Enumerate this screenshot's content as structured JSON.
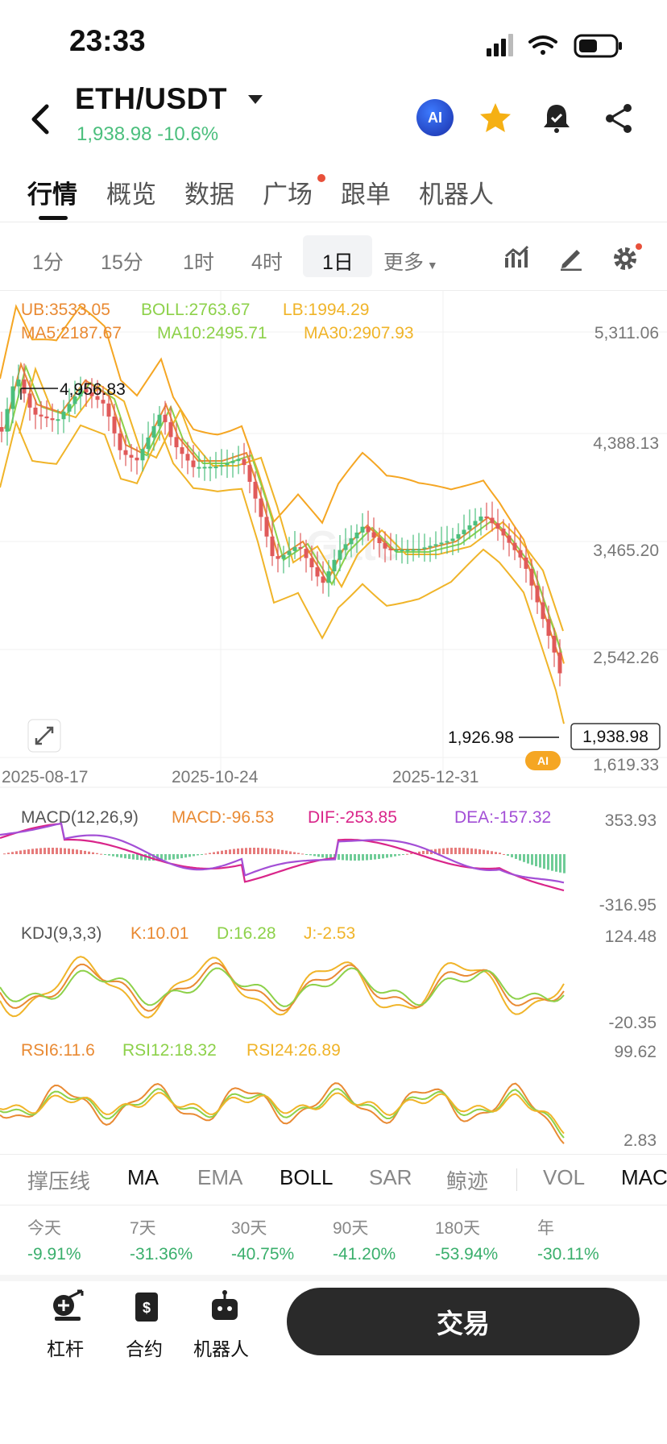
{
  "status_bar": {
    "time": "23:33"
  },
  "header": {
    "pair": "ETH/USDT",
    "price": "1,938.98",
    "change": "-10.6%",
    "ai_badge": "AI",
    "icons": [
      "back-icon",
      "ai-icon",
      "star-icon",
      "bell-icon",
      "share-icon"
    ]
  },
  "tabs": [
    "行情",
    "概览",
    "数据",
    "广场",
    "跟单",
    "机器人"
  ],
  "timeframes": [
    "1分",
    "15分",
    "1时",
    "4时",
    "1日",
    "更多"
  ],
  "chart": {
    "boll": {
      "ub": "UB:3533.05",
      "boll": "BOLL:2763.67",
      "lb": "LB:1994.29"
    },
    "ma": {
      "ma5": "MA5:2187.67",
      "ma10": "MA10:2495.71",
      "ma30": "MA30:2907.93"
    },
    "y_ticks": [
      "5,311.06",
      "4,388.13",
      "3,465.20",
      "2,542.26",
      "1,619.33"
    ],
    "high_label": "4,956.83",
    "low_label": "1,926.98",
    "current_price": "1,938.98",
    "x_ticks": [
      "2025-08-17",
      "2025-10-24",
      "2025-12-31"
    ],
    "watermark": "Gate",
    "ai_tag": "AI"
  },
  "macd": {
    "title": "MACD(12,26,9)",
    "macd": "MACD:-96.53",
    "dif": "DIF:-253.85",
    "dea": "DEA:-157.32",
    "y_top": "353.93",
    "y_bottom": "-316.95"
  },
  "kdj": {
    "title": "KDJ(9,3,3)",
    "k": "K:10.01",
    "d": "D:16.28",
    "j": "J:-2.53",
    "y_top": "124.48",
    "y_bottom": "-20.35"
  },
  "rsi": {
    "rsi6": "RSI6:11.6",
    "rsi12": "RSI12:18.32",
    "rsi24": "RSI24:26.89",
    "y_top": "99.62",
    "y_bottom": "2.83"
  },
  "indicator_bar": [
    "撑压线",
    "MA",
    "EMA",
    "BOLL",
    "SAR",
    "鲸迹",
    "VOL",
    "MAC"
  ],
  "performance": [
    {
      "label": "今天",
      "value": "-9.91%"
    },
    {
      "label": "7天",
      "value": "-31.36%"
    },
    {
      "label": "30天",
      "value": "-40.75%"
    },
    {
      "label": "90天",
      "value": "-41.20%"
    },
    {
      "label": "180天",
      "value": "-53.94%"
    },
    {
      "label": "年",
      "value": "-30.11%"
    }
  ],
  "bottom_nav": {
    "leverage": "杠杆",
    "contract": "合约",
    "bot": "机器人",
    "trade": "交易"
  },
  "colors": {
    "up": "#4bbf7d",
    "down": "#e05a5a",
    "accent": "#f5a623",
    "boll_mid": "#8dd14a",
    "macd_dif": "#d9258a",
    "macd_dea": "#a34fd6"
  }
}
